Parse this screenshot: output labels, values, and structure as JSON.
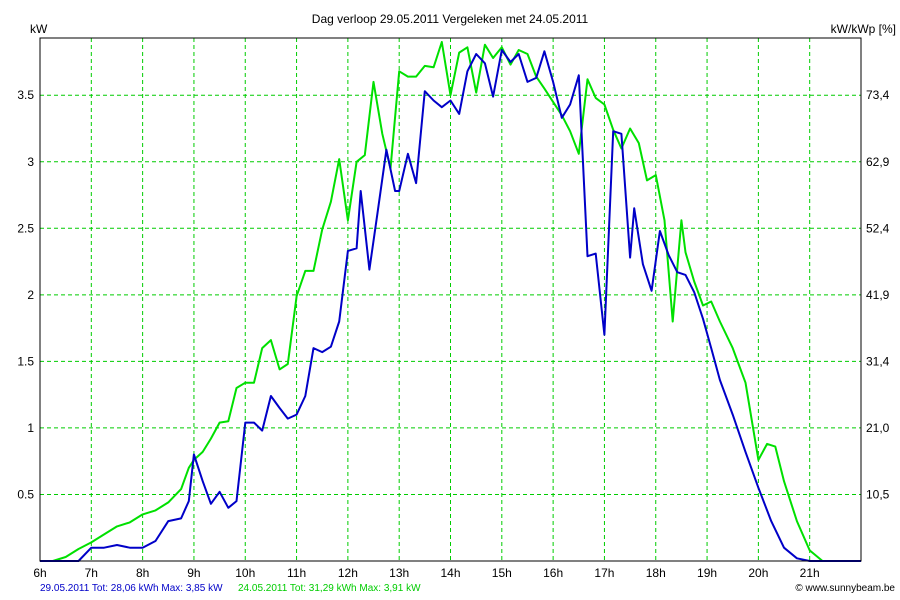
{
  "chart_data": {
    "type": "line",
    "title": "Dag  verloop 29.05.2011   Vergeleken met 24.05.2011",
    "ylabel_left": "kW",
    "ylabel_right": "kW/kWp [%]",
    "x_unit": "hour",
    "xlim": [
      6,
      22
    ],
    "ylim": [
      0,
      3.93
    ],
    "x_ticks": [
      {
        "value": 6,
        "label": "6h"
      },
      {
        "value": 7,
        "label": "7h"
      },
      {
        "value": 8,
        "label": "8h"
      },
      {
        "value": 9,
        "label": "9h"
      },
      {
        "value": 10,
        "label": "10h"
      },
      {
        "value": 11,
        "label": "11h"
      },
      {
        "value": 12,
        "label": "12h"
      },
      {
        "value": 13,
        "label": "13h"
      },
      {
        "value": 14,
        "label": "14h"
      },
      {
        "value": 15,
        "label": "15h"
      },
      {
        "value": 16,
        "label": "16h"
      },
      {
        "value": 17,
        "label": "17h"
      },
      {
        "value": 18,
        "label": "18h"
      },
      {
        "value": 19,
        "label": "19h"
      },
      {
        "value": 20,
        "label": "20h"
      },
      {
        "value": 21,
        "label": "21h"
      }
    ],
    "y_ticks_left": [
      {
        "value": 0.5,
        "label": "0.5"
      },
      {
        "value": 1,
        "label": "1"
      },
      {
        "value": 1.5,
        "label": "1.5"
      },
      {
        "value": 2,
        "label": "2"
      },
      {
        "value": 2.5,
        "label": "2.5"
      },
      {
        "value": 3,
        "label": "3"
      },
      {
        "value": 3.5,
        "label": "3.5"
      }
    ],
    "y_ticks_right": [
      {
        "value": 0.5,
        "label": "10,5"
      },
      {
        "value": 1,
        "label": "21,0"
      },
      {
        "value": 1.5,
        "label": "31,4"
      },
      {
        "value": 2,
        "label": "41,9"
      },
      {
        "value": 2.5,
        "label": "52,4"
      },
      {
        "value": 3,
        "label": "62,9"
      },
      {
        "value": 3.5,
        "label": "73,4"
      }
    ],
    "grid": true,
    "colors": {
      "grid": "#00cc00",
      "axis": "#000000",
      "blue": "#0000c8",
      "green": "#00e000"
    },
    "series": [
      {
        "name": "29.05.2011",
        "color": "#0000c8",
        "x": [
          6.0,
          6.25,
          6.5,
          6.75,
          7.0,
          7.25,
          7.5,
          7.75,
          8.0,
          8.25,
          8.5,
          8.75,
          8.9,
          9.0,
          9.17,
          9.33,
          9.5,
          9.67,
          9.83,
          10.0,
          10.17,
          10.33,
          10.5,
          10.67,
          10.83,
          11.0,
          11.17,
          11.33,
          11.5,
          11.67,
          11.83,
          12.0,
          12.17,
          12.25,
          12.42,
          12.58,
          12.75,
          12.92,
          13.0,
          13.17,
          13.33,
          13.5,
          13.67,
          13.83,
          14.0,
          14.17,
          14.33,
          14.5,
          14.67,
          14.83,
          15.0,
          15.17,
          15.33,
          15.5,
          15.67,
          15.83,
          16.0,
          16.17,
          16.33,
          16.5,
          16.67,
          16.83,
          17.0,
          17.17,
          17.33,
          17.5,
          17.58,
          17.75,
          17.92,
          18.08,
          18.25,
          18.42,
          18.58,
          18.75,
          18.92,
          19.08,
          19.25,
          19.5,
          19.75,
          20.0,
          20.25,
          20.5,
          20.75,
          21.0,
          21.25,
          21.5,
          21.75,
          22.0
        ],
        "values": [
          0.0,
          0.0,
          0.0,
          0.0,
          0.1,
          0.1,
          0.12,
          0.1,
          0.1,
          0.15,
          0.3,
          0.32,
          0.45,
          0.8,
          0.6,
          0.43,
          0.52,
          0.4,
          0.45,
          1.04,
          1.04,
          0.98,
          1.24,
          1.15,
          1.07,
          1.1,
          1.24,
          1.6,
          1.57,
          1.61,
          1.8,
          2.33,
          2.35,
          2.78,
          2.19,
          2.62,
          3.09,
          2.78,
          2.78,
          3.06,
          2.84,
          3.53,
          3.46,
          3.41,
          3.46,
          3.36,
          3.68,
          3.81,
          3.74,
          3.49,
          3.84,
          3.75,
          3.81,
          3.6,
          3.63,
          3.83,
          3.6,
          3.33,
          3.43,
          3.65,
          2.29,
          2.31,
          1.7,
          3.23,
          3.21,
          2.28,
          2.65,
          2.23,
          2.03,
          2.48,
          2.3,
          2.17,
          2.15,
          2.02,
          1.82,
          1.6,
          1.36,
          1.1,
          0.82,
          0.55,
          0.3,
          0.1,
          0.02,
          0.0,
          0.0,
          0.0,
          0.0,
          0.0
        ]
      },
      {
        "name": "24.05.2011",
        "color": "#00e000",
        "x": [
          6.0,
          6.25,
          6.5,
          6.75,
          7.0,
          7.25,
          7.5,
          7.75,
          8.0,
          8.25,
          8.5,
          8.75,
          8.9,
          9.0,
          9.17,
          9.33,
          9.5,
          9.67,
          9.83,
          10.0,
          10.17,
          10.33,
          10.5,
          10.67,
          10.83,
          11.0,
          11.17,
          11.33,
          11.5,
          11.67,
          11.83,
          12.0,
          12.17,
          12.33,
          12.5,
          12.67,
          12.83,
          13.0,
          13.17,
          13.33,
          13.5,
          13.67,
          13.83,
          14.0,
          14.17,
          14.33,
          14.5,
          14.67,
          14.83,
          15.0,
          15.17,
          15.33,
          15.5,
          15.67,
          15.83,
          16.0,
          16.17,
          16.33,
          16.5,
          16.67,
          16.83,
          17.0,
          17.17,
          17.33,
          17.5,
          17.67,
          17.83,
          18.0,
          18.17,
          18.33,
          18.5,
          18.58,
          18.75,
          18.92,
          19.08,
          19.25,
          19.5,
          19.75,
          20.0,
          20.17,
          20.33,
          20.5,
          20.75,
          21.0,
          21.25,
          21.5,
          21.75,
          22.0
        ],
        "values": [
          0.0,
          0.0,
          0.03,
          0.09,
          0.14,
          0.2,
          0.26,
          0.29,
          0.35,
          0.38,
          0.44,
          0.54,
          0.7,
          0.76,
          0.82,
          0.92,
          1.04,
          1.05,
          1.3,
          1.34,
          1.34,
          1.6,
          1.66,
          1.44,
          1.48,
          1.99,
          2.18,
          2.18,
          2.49,
          2.7,
          3.02,
          2.56,
          3.0,
          3.05,
          3.6,
          3.21,
          2.95,
          3.68,
          3.64,
          3.64,
          3.72,
          3.71,
          3.9,
          3.5,
          3.82,
          3.86,
          3.52,
          3.88,
          3.78,
          3.86,
          3.73,
          3.84,
          3.81,
          3.64,
          3.55,
          3.45,
          3.35,
          3.23,
          3.06,
          3.62,
          3.48,
          3.43,
          3.24,
          3.1,
          3.25,
          3.14,
          2.86,
          2.9,
          2.56,
          1.8,
          2.56,
          2.32,
          2.1,
          1.92,
          1.95,
          1.8,
          1.6,
          1.34,
          0.76,
          0.88,
          0.86,
          0.6,
          0.3,
          0.08,
          0.0,
          0.0,
          0.0,
          0.0
        ]
      }
    ]
  },
  "footer": {
    "blue": "29.05.2011 Tot: 28,06 kWh Max: 3,85 kW",
    "green": "24.05.2011 Tot: 31,29 kWh Max: 3,91 kW",
    "credit": "© www.sunnybeam.be"
  }
}
